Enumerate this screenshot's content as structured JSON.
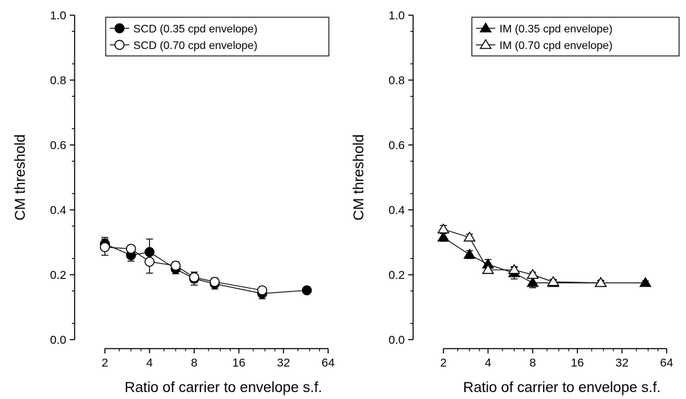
{
  "chart_data": [
    {
      "type": "line",
      "xscale": "log2",
      "xlabel": "Ratio of carrier to envelope s.f.",
      "ylabel": "CM threshold",
      "xlim": [
        1.8,
        64
      ],
      "ylim": [
        0,
        1.0
      ],
      "xticks": [
        2,
        4,
        8,
        16,
        32,
        64
      ],
      "xtick_labels": [
        "2",
        "4",
        "8",
        "16",
        "32",
        "64"
      ],
      "yticks": [
        0,
        0.2,
        0.4,
        0.6,
        0.8,
        1.0
      ],
      "ytick_labels": [
        "0.0",
        "0.2",
        "0.4",
        "0.6",
        "0.8",
        "1.0"
      ],
      "legend_position": "top-right",
      "grid": false,
      "series": [
        {
          "name": "SCD (0.35 cpd envelope)",
          "marker": "circle-filled",
          "x": [
            2,
            3,
            4,
            6,
            8,
            11,
            23,
            46
          ],
          "y": [
            0.295,
            0.26,
            0.27,
            0.218,
            0.188,
            0.172,
            0.142,
            0.152
          ],
          "err": [
            0.02,
            0.018,
            0.04,
            0.015,
            0.02,
            0.016,
            0.016,
            0
          ]
        },
        {
          "name": "SCD (0.70 cpd envelope)",
          "marker": "circle-open",
          "x": [
            2,
            3,
            4,
            6,
            8,
            11,
            23
          ],
          "y": [
            0.285,
            0.28,
            0.24,
            0.228,
            0.192,
            0.178,
            0.152
          ],
          "err": [
            0.025,
            0.01,
            0.035,
            0.012,
            0.016,
            0.012,
            0.008
          ]
        }
      ]
    },
    {
      "type": "line",
      "xscale": "log2",
      "xlabel": "Ratio of carrier to envelope s.f.",
      "ylabel": "CM threshold",
      "xlim": [
        1.8,
        64
      ],
      "ylim": [
        0,
        1.0
      ],
      "xticks": [
        2,
        4,
        8,
        16,
        32,
        64
      ],
      "xtick_labels": [
        "2",
        "4",
        "8",
        "16",
        "32",
        "64"
      ],
      "yticks": [
        0,
        0.2,
        0.4,
        0.6,
        0.8,
        1.0
      ],
      "ytick_labels": [
        "0.0",
        "0.2",
        "0.4",
        "0.6",
        "0.8",
        "1.0"
      ],
      "legend_position": "top-right",
      "grid": false,
      "series": [
        {
          "name": "IM (0.35 cpd envelope)",
          "marker": "triangle-filled",
          "x": [
            2,
            3,
            4,
            6,
            8,
            11,
            23,
            46
          ],
          "y": [
            0.315,
            0.262,
            0.232,
            0.205,
            0.175,
            0.175,
            0.175,
            0.175
          ],
          "err": [
            0.012,
            0.012,
            0.015,
            0.018,
            0.015,
            0.008,
            0.008,
            0.006
          ]
        },
        {
          "name": "IM (0.70 cpd envelope)",
          "marker": "triangle-open",
          "x": [
            2,
            3,
            4,
            6,
            8,
            11,
            23
          ],
          "y": [
            0.34,
            0.315,
            0.215,
            0.215,
            0.2,
            0.178,
            0.175
          ],
          "err": [
            0.012,
            0.01,
            0.01,
            0.01,
            0.008,
            0.008,
            0.006
          ]
        }
      ]
    }
  ]
}
